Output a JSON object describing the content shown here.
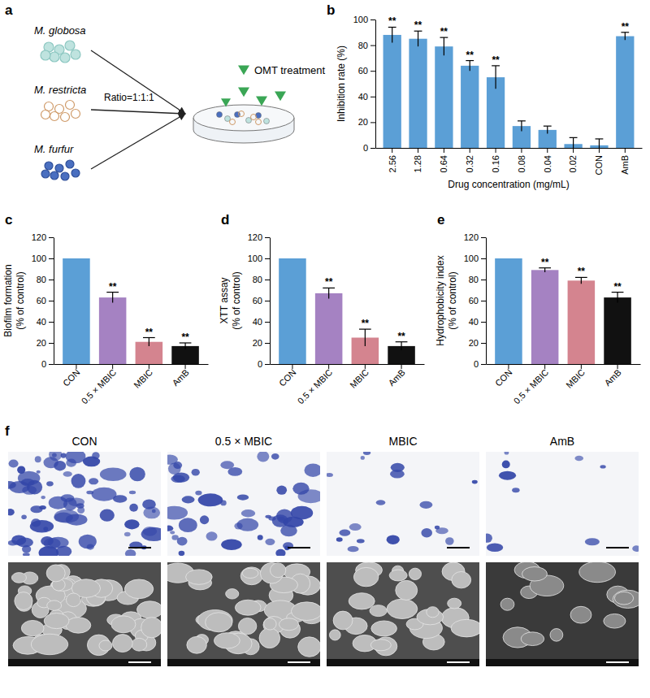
{
  "chart_data": [
    {
      "panel": "b",
      "type": "bar",
      "categories": [
        "2.56",
        "1.28",
        "0.64",
        "0.32",
        "0.16",
        "0.08",
        "0.04",
        "0.02",
        "CON",
        "AmB"
      ],
      "values": [
        88,
        85,
        79,
        64,
        55,
        17,
        14,
        3,
        2,
        87
      ],
      "errors": [
        6,
        6,
        7,
        4,
        9,
        4,
        3,
        5,
        5,
        3
      ],
      "annotations": [
        "**",
        "**",
        "**",
        "**",
        "**",
        null,
        null,
        null,
        null,
        "**"
      ],
      "color": "#5b9fd6",
      "x_label": "Drug concentration (mg/mL)",
      "y_label": "Inhibition rate (%)",
      "ylim": [
        0,
        100
      ],
      "yticks": [
        0,
        20,
        40,
        60,
        80,
        100
      ]
    },
    {
      "panel": "c",
      "type": "bar",
      "categories": [
        "CON",
        "0.5 × MBIC",
        "MBIC",
        "AmB"
      ],
      "values": [
        100,
        63,
        21,
        17
      ],
      "errors": [
        null,
        5,
        4,
        3
      ],
      "annotations": [
        null,
        "**",
        "**",
        "**"
      ],
      "colors": [
        "#5b9fd6",
        "#a582c2",
        "#d4848f",
        "#111111"
      ],
      "y_label": "Biofilm formation (% of control)",
      "ylim": [
        0,
        120
      ],
      "yticks": [
        0,
        20,
        40,
        60,
        80,
        100,
        120
      ]
    },
    {
      "panel": "d",
      "type": "bar",
      "categories": [
        "CON",
        "0.5 × MBIC",
        "MBIC",
        "AmB"
      ],
      "values": [
        100,
        67,
        25,
        17
      ],
      "errors": [
        null,
        5,
        8,
        4
      ],
      "annotations": [
        null,
        "**",
        "**",
        "**"
      ],
      "colors": [
        "#5b9fd6",
        "#a582c2",
        "#d4848f",
        "#111111"
      ],
      "y_label": "XTT assay (% of control)",
      "ylim": [
        0,
        120
      ],
      "yticks": [
        0,
        20,
        40,
        60,
        80,
        100,
        120
      ]
    },
    {
      "panel": "e",
      "type": "bar",
      "categories": [
        "CON",
        "0.5 × MBIC",
        "MBIC",
        "AmB"
      ],
      "values": [
        100,
        89,
        79,
        63
      ],
      "errors": [
        null,
        2,
        3,
        5
      ],
      "annotations": [
        null,
        "**",
        "**",
        "**"
      ],
      "colors": [
        "#5b9fd6",
        "#a582c2",
        "#d4848f",
        "#111111"
      ],
      "y_label": "Hydrophobicity index (% of control)",
      "ylim": [
        0,
        120
      ],
      "yticks": [
        0,
        20,
        40,
        60,
        80,
        100,
        120
      ]
    }
  ],
  "diagram": {
    "panel": "a",
    "organisms": [
      "M. globosa",
      "M. restricta",
      "M. furfur"
    ],
    "ratio_label": "Ratio=1:1:1",
    "treatment_label": "OMT treatment"
  },
  "images": {
    "panel": "f",
    "columns": [
      "CON",
      "0.5 × MBIC",
      "MBIC",
      "AmB"
    ]
  }
}
